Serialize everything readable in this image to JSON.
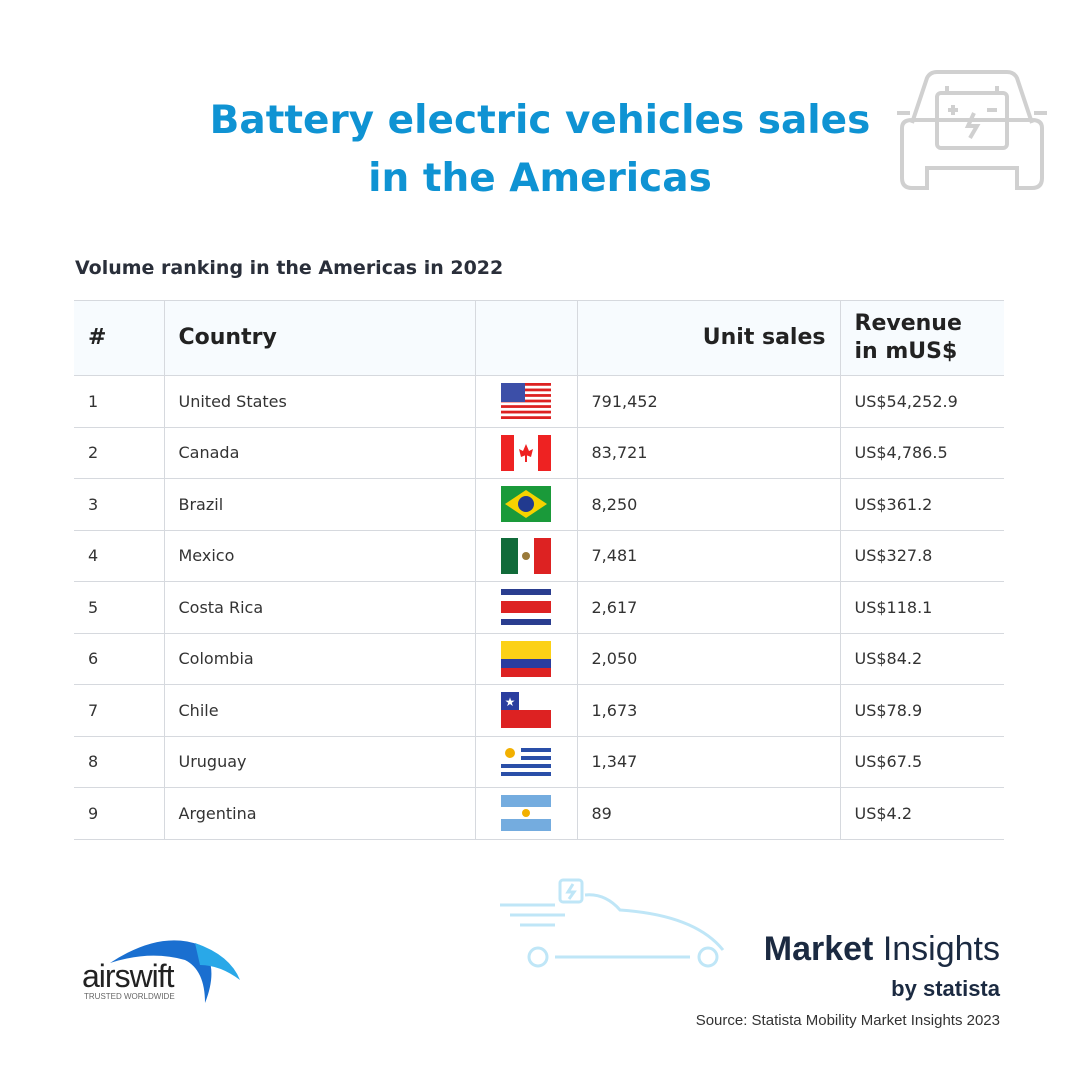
{
  "title_line1": "Battery electric vehicles sales",
  "title_line2": "in the Americas",
  "subtitle": "Volume ranking in the Americas in 2022",
  "columns": [
    "#",
    "Country",
    "",
    "Unit sales",
    "Revenue in mUS$"
  ],
  "rows": [
    {
      "rank": "1",
      "country": "United States",
      "flag": "us-flag-icon",
      "units": "791,452",
      "revenue": "US$54,252.9"
    },
    {
      "rank": "2",
      "country": "Canada",
      "flag": "canada-flag-icon",
      "units": "83,721",
      "revenue": "US$4,786.5"
    },
    {
      "rank": "3",
      "country": "Brazil",
      "flag": "brazil-flag-icon",
      "units": "8,250",
      "revenue": "US$361.2"
    },
    {
      "rank": "4",
      "country": "Mexico",
      "flag": "mexico-flag-icon",
      "units": "7,481",
      "revenue": "US$327.8"
    },
    {
      "rank": "5",
      "country": "Costa Rica",
      "flag": "costa-rica-flag-icon",
      "units": "2,617",
      "revenue": "US$118.1"
    },
    {
      "rank": "6",
      "country": "Colombia",
      "flag": "colombia-flag-icon",
      "units": "2,050",
      "revenue": "US$84.2"
    },
    {
      "rank": "7",
      "country": "Chile",
      "flag": "chile-flag-icon",
      "units": "1,673",
      "revenue": "US$78.9"
    },
    {
      "rank": "8",
      "country": "Uruguay",
      "flag": "uruguay-flag-icon",
      "units": "1,347",
      "revenue": "US$67.5"
    },
    {
      "rank": "9",
      "country": "Argentina",
      "flag": "argentina-flag-icon",
      "units": "89",
      "revenue": "US$4.2"
    }
  ],
  "footer": {
    "brand": "airswift",
    "tagline": "TRUSTED WORLDWIDE",
    "mi_bold": "Market",
    "mi_light": " Insights",
    "by": "by statista",
    "source": "Source: Statista Mobility Market Insights 2023"
  },
  "colors": {
    "title": "#0f93d3",
    "text": "#333333"
  }
}
